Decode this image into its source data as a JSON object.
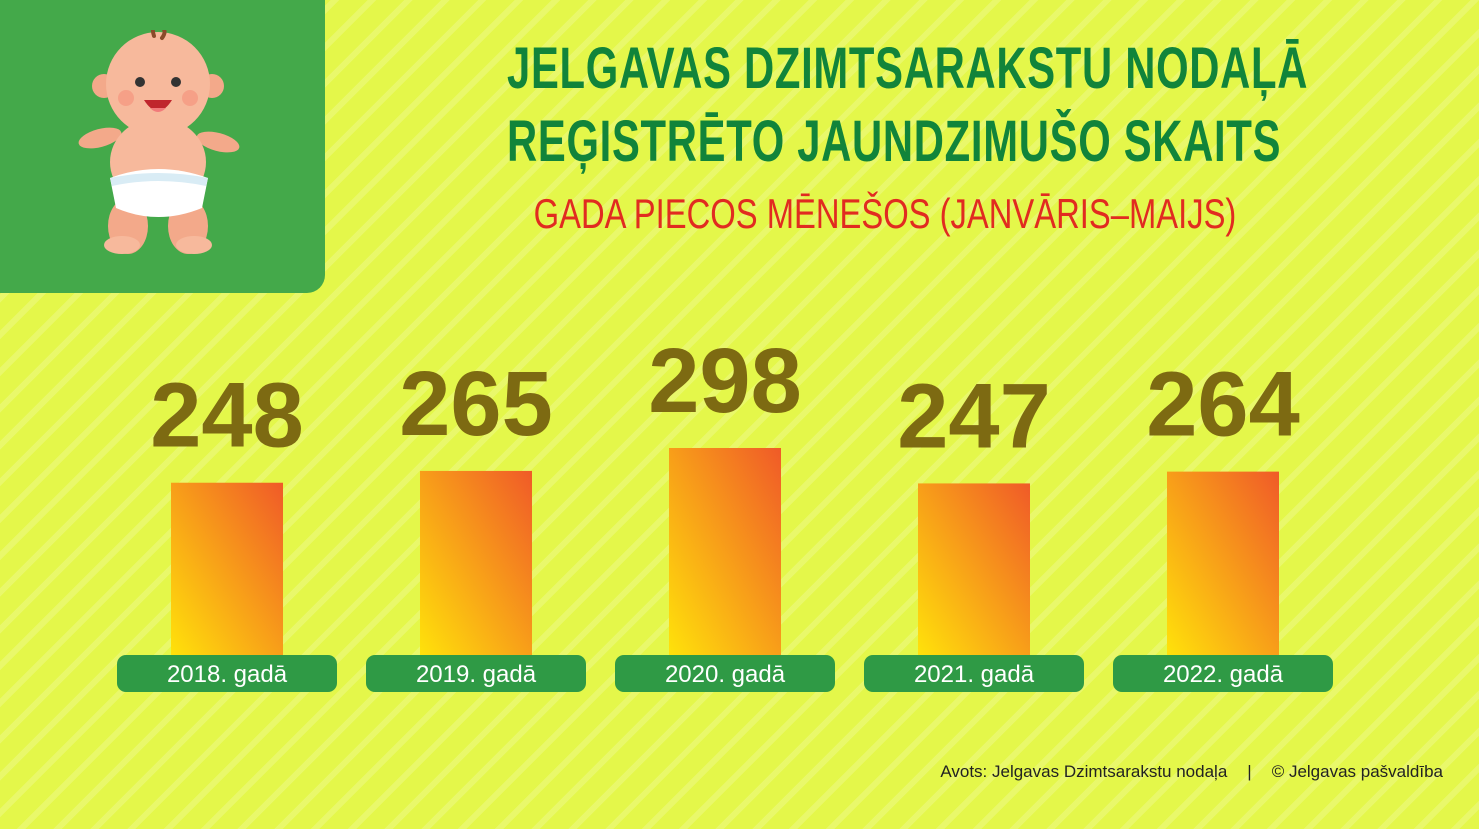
{
  "header": {
    "title_line1": "JELGAVAS DZIMTSARAKSTU NODAĻĀ",
    "title_line2": "REĢISTRĒTO JAUNDZIMUŠO SKAITS",
    "subtitle": "GADA PIECOS MĒNEŠOS (JANVĀRIS–MAIJS)"
  },
  "illustration": {
    "icon": "baby-icon"
  },
  "chart_data": {
    "type": "bar",
    "categories": [
      "2018. gadā",
      "2019. gadā",
      "2020. gadā",
      "2021. gadā",
      "2022. gadā"
    ],
    "values": [
      248,
      265,
      298,
      247,
      264
    ],
    "data_labels": [
      "248",
      "265",
      "298",
      "247",
      "264"
    ],
    "grid": false,
    "colors": {
      "bar_top": "#f05a28",
      "bar_bottom": "#ffe20a",
      "value_label": "#7d6a12",
      "category_pill": "#2f9a45",
      "category_text": "#ffffff"
    }
  },
  "footer": {
    "source": "Avots: Jelgavas Dzimtsarakstu nodaļa",
    "separator": "|",
    "copyright": "© Jelgavas pašvaldība"
  }
}
